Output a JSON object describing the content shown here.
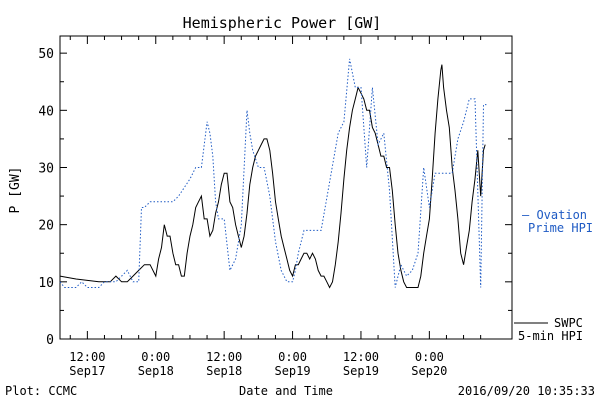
{
  "chart_data": {
    "type": "line",
    "title": "Hemispheric Power [GW]",
    "xlabel": "Date and Time",
    "ylabel": "P [GW]",
    "ylim": [
      0,
      53
    ],
    "yticks": [
      0,
      10,
      20,
      30,
      40,
      50
    ],
    "grid": false,
    "x_unit": "hours since 2016-09-17 00:00",
    "xlim": [
      7.2,
      86.5
    ],
    "xticks": [
      {
        "x": 12,
        "time": "12:00",
        "date": "Sep17"
      },
      {
        "x": 24,
        "time": "0:00",
        "date": "Sep18"
      },
      {
        "x": 36,
        "time": "12:00",
        "date": "Sep18"
      },
      {
        "x": 48,
        "time": "0:00",
        "date": "Sep19"
      },
      {
        "x": 60,
        "time": "12:00",
        "date": "Sep19"
      },
      {
        "x": 72,
        "time": "0:00",
        "date": "Sep20"
      }
    ],
    "footer": {
      "left": "Plot: CCMC",
      "right": "2016/09/20 10:35:33"
    },
    "series": [
      {
        "name": "SWPC 5-min HPI",
        "legend_lines": [
          "SWPC",
          "5-min HPI"
        ],
        "color": "#000000",
        "style": "solid",
        "points": [
          [
            7.2,
            11
          ],
          [
            10,
            10.5
          ],
          [
            14,
            10
          ],
          [
            16,
            10
          ],
          [
            17,
            11
          ],
          [
            18,
            10
          ],
          [
            19,
            10
          ],
          [
            20,
            11
          ],
          [
            21,
            12
          ],
          [
            22,
            13
          ],
          [
            23,
            13
          ],
          [
            24,
            11
          ],
          [
            24.5,
            14
          ],
          [
            25,
            16
          ],
          [
            25.5,
            20
          ],
          [
            26,
            18
          ],
          [
            26.5,
            18
          ],
          [
            27,
            15
          ],
          [
            27.5,
            13
          ],
          [
            28,
            13
          ],
          [
            28.5,
            11
          ],
          [
            29,
            11
          ],
          [
            29.5,
            15
          ],
          [
            30,
            18
          ],
          [
            30.5,
            20
          ],
          [
            31,
            23
          ],
          [
            31.5,
            24
          ],
          [
            32,
            25
          ],
          [
            32.5,
            21
          ],
          [
            33,
            21
          ],
          [
            33.5,
            18
          ],
          [
            34,
            19
          ],
          [
            34.5,
            22
          ],
          [
            35,
            24
          ],
          [
            35.5,
            27
          ],
          [
            36,
            29
          ],
          [
            36.5,
            29
          ],
          [
            37,
            24
          ],
          [
            37.5,
            23
          ],
          [
            38,
            20
          ],
          [
            38.5,
            18
          ],
          [
            39,
            16
          ],
          [
            39.5,
            18
          ],
          [
            40,
            22
          ],
          [
            40.5,
            27
          ],
          [
            41,
            30
          ],
          [
            41.5,
            32
          ],
          [
            42,
            33
          ],
          [
            42.5,
            34
          ],
          [
            43,
            35
          ],
          [
            43.5,
            35
          ],
          [
            44,
            33
          ],
          [
            44.5,
            29
          ],
          [
            45,
            24
          ],
          [
            45.5,
            21
          ],
          [
            46,
            18
          ],
          [
            46.5,
            16
          ],
          [
            47,
            14
          ],
          [
            47.5,
            12
          ],
          [
            48,
            11
          ],
          [
            48.5,
            13
          ],
          [
            49,
            13
          ],
          [
            49.5,
            14
          ],
          [
            50,
            15
          ],
          [
            50.5,
            15
          ],
          [
            51,
            14
          ],
          [
            51.5,
            15
          ],
          [
            52,
            14
          ],
          [
            52.5,
            12
          ],
          [
            53,
            11
          ],
          [
            53.5,
            11
          ],
          [
            54,
            10
          ],
          [
            54.5,
            9
          ],
          [
            55,
            10
          ],
          [
            55.5,
            13
          ],
          [
            56,
            17
          ],
          [
            56.5,
            22
          ],
          [
            57,
            28
          ],
          [
            57.5,
            33
          ],
          [
            58,
            37
          ],
          [
            58.5,
            40
          ],
          [
            59,
            42
          ],
          [
            59.5,
            44
          ],
          [
            60,
            43
          ],
          [
            60.5,
            42
          ],
          [
            61,
            40
          ],
          [
            61.5,
            40
          ],
          [
            62,
            37
          ],
          [
            62.5,
            36
          ],
          [
            63,
            34
          ],
          [
            63.5,
            32
          ],
          [
            64,
            32
          ],
          [
            64.5,
            30
          ],
          [
            65,
            30
          ],
          [
            65.5,
            26
          ],
          [
            66,
            20
          ],
          [
            66.5,
            15
          ],
          [
            67,
            12
          ],
          [
            67.5,
            10
          ],
          [
            68,
            9
          ],
          [
            68.5,
            9
          ],
          [
            69,
            9
          ],
          [
            69.5,
            9
          ],
          [
            70,
            9
          ],
          [
            70.5,
            11
          ],
          [
            71,
            15
          ],
          [
            71.5,
            18
          ],
          [
            72,
            21
          ],
          [
            72.5,
            28
          ],
          [
            73,
            36
          ],
          [
            73.5,
            42
          ],
          [
            74,
            47
          ],
          [
            74.2,
            48
          ],
          [
            74.5,
            44
          ],
          [
            75,
            40
          ],
          [
            75.5,
            37
          ],
          [
            76,
            30
          ],
          [
            76.5,
            26
          ],
          [
            77,
            21
          ],
          [
            77.5,
            15
          ],
          [
            78,
            13
          ],
          [
            78.5,
            16
          ],
          [
            79,
            19
          ],
          [
            79.5,
            24
          ],
          [
            80,
            28
          ],
          [
            80.5,
            33
          ],
          [
            81,
            25
          ],
          [
            81.5,
            33
          ],
          [
            81.8,
            34
          ]
        ]
      },
      {
        "name": "Ovation Prime HPI",
        "legend_lines": [
          "— Ovation",
          "Prime HPI"
        ],
        "color": "#1f5bc4",
        "style": "dotted",
        "points": [
          [
            7.2,
            10
          ],
          [
            8,
            9
          ],
          [
            10,
            9
          ],
          [
            11,
            10
          ],
          [
            12,
            9
          ],
          [
            13,
            9
          ],
          [
            14,
            9
          ],
          [
            15,
            10
          ],
          [
            17,
            10
          ],
          [
            18,
            11
          ],
          [
            19,
            12
          ],
          [
            20,
            10
          ],
          [
            21,
            10
          ],
          [
            21.5,
            23
          ],
          [
            22,
            23
          ],
          [
            23,
            24
          ],
          [
            26,
            24
          ],
          [
            27,
            24
          ],
          [
            28,
            25
          ],
          [
            30,
            28
          ],
          [
            31,
            30
          ],
          [
            32,
            30
          ],
          [
            33,
            38
          ],
          [
            33.5,
            36
          ],
          [
            34,
            32
          ],
          [
            34.5,
            24
          ],
          [
            35,
            21
          ],
          [
            36,
            21
          ],
          [
            37,
            12
          ],
          [
            38,
            14
          ],
          [
            39,
            20
          ],
          [
            40,
            40
          ],
          [
            40.5,
            36
          ],
          [
            41,
            33
          ],
          [
            42,
            30
          ],
          [
            43,
            30
          ],
          [
            44,
            25
          ],
          [
            45,
            17
          ],
          [
            46,
            12
          ],
          [
            47,
            10
          ],
          [
            48,
            10
          ],
          [
            48.5,
            12
          ],
          [
            49,
            15
          ],
          [
            50,
            19
          ],
          [
            53,
            19
          ],
          [
            56,
            36
          ],
          [
            57,
            38
          ],
          [
            58,
            49
          ],
          [
            59,
            44
          ],
          [
            60,
            44
          ],
          [
            61,
            30
          ],
          [
            62,
            44
          ],
          [
            63,
            34
          ],
          [
            64,
            36
          ],
          [
            65,
            26
          ],
          [
            66,
            9
          ],
          [
            67,
            13
          ],
          [
            68,
            11
          ],
          [
            69,
            12
          ],
          [
            70,
            15
          ],
          [
            71,
            30
          ],
          [
            72,
            23
          ],
          [
            73,
            29
          ],
          [
            76,
            29
          ],
          [
            77,
            35
          ],
          [
            78,
            38
          ],
          [
            79,
            42
          ],
          [
            80,
            42
          ],
          [
            81,
            9
          ],
          [
            81.5,
            41
          ],
          [
            82,
            41
          ]
        ]
      }
    ]
  }
}
